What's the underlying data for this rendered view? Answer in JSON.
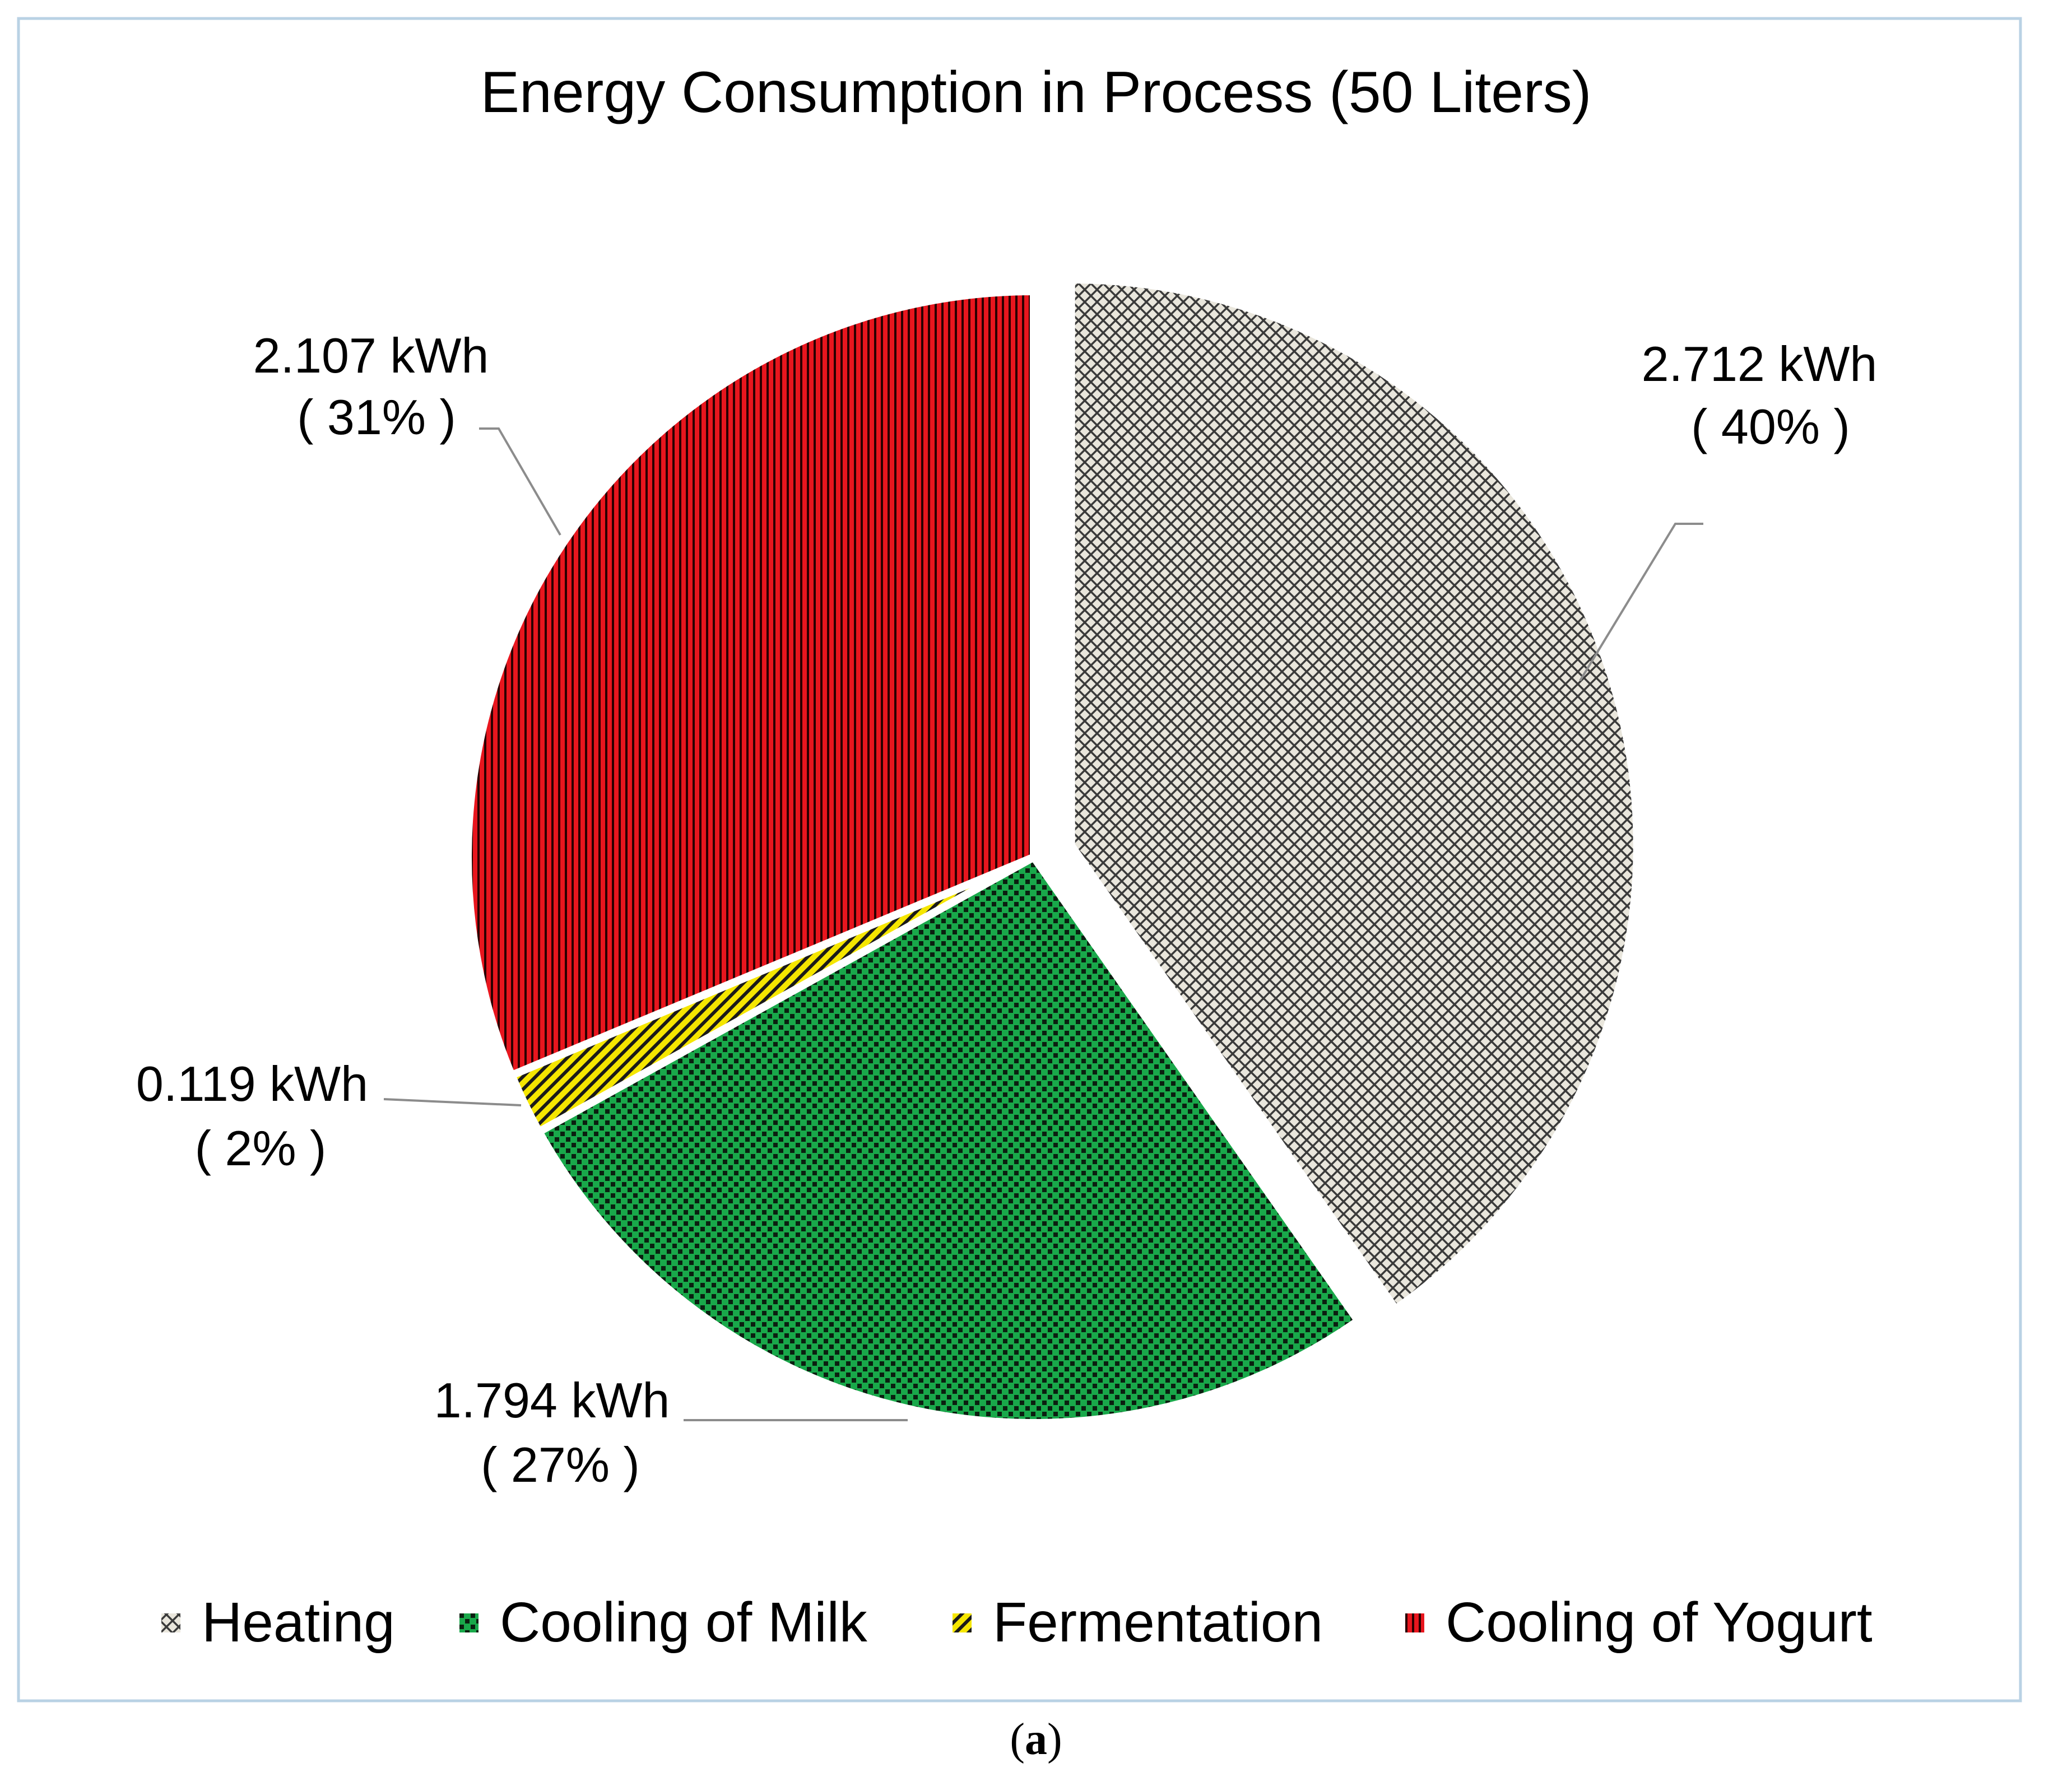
{
  "chart_data": {
    "type": "pie",
    "title": "Energy Consumption in Process (50 Liters)",
    "unit": "kWh",
    "start_angle_deg": 0,
    "direction": "clockwise",
    "slices": [
      {
        "name": "Heating",
        "value": 2.712,
        "label": "2.712 kWh",
        "percent_label": "( 40% )",
        "color": "#e9e6dc",
        "pattern": "diamond-crosshatch",
        "pattern_color": "#3a3a3a",
        "exploded": true
      },
      {
        "name": "Cooling of Milk",
        "value": 1.794,
        "label": "1.794 kWh",
        "percent_label": "( 27% )",
        "color": "#19a84a",
        "pattern": "checker-dots",
        "pattern_color": "#0b1f10",
        "exploded": false
      },
      {
        "name": "Fermentation",
        "value": 0.119,
        "label": "0.119 kWh",
        "percent_label": "( 2% )",
        "color": "#f5e600",
        "pattern": "diagonal-stripes",
        "pattern_color": "#1a1a1a",
        "exploded": false
      },
      {
        "name": "Cooling of Yogurt",
        "value": 2.107,
        "label": "2.107 kWh",
        "percent_label": "( 31% )",
        "color": "#e8161e",
        "pattern": "vertical-stripes",
        "pattern_color": "#2a0000",
        "exploded": false
      }
    ],
    "legend": {
      "position": "bottom",
      "entries": [
        "Heating",
        "Cooling of Milk",
        "Fermentation",
        "Cooling of Yogurt"
      ]
    }
  },
  "caption": {
    "open": "(",
    "letter": "a",
    "close": ")"
  },
  "colors": {
    "border": "#b9d2e4",
    "leader": "#8c8c8c",
    "text": "#000000"
  }
}
